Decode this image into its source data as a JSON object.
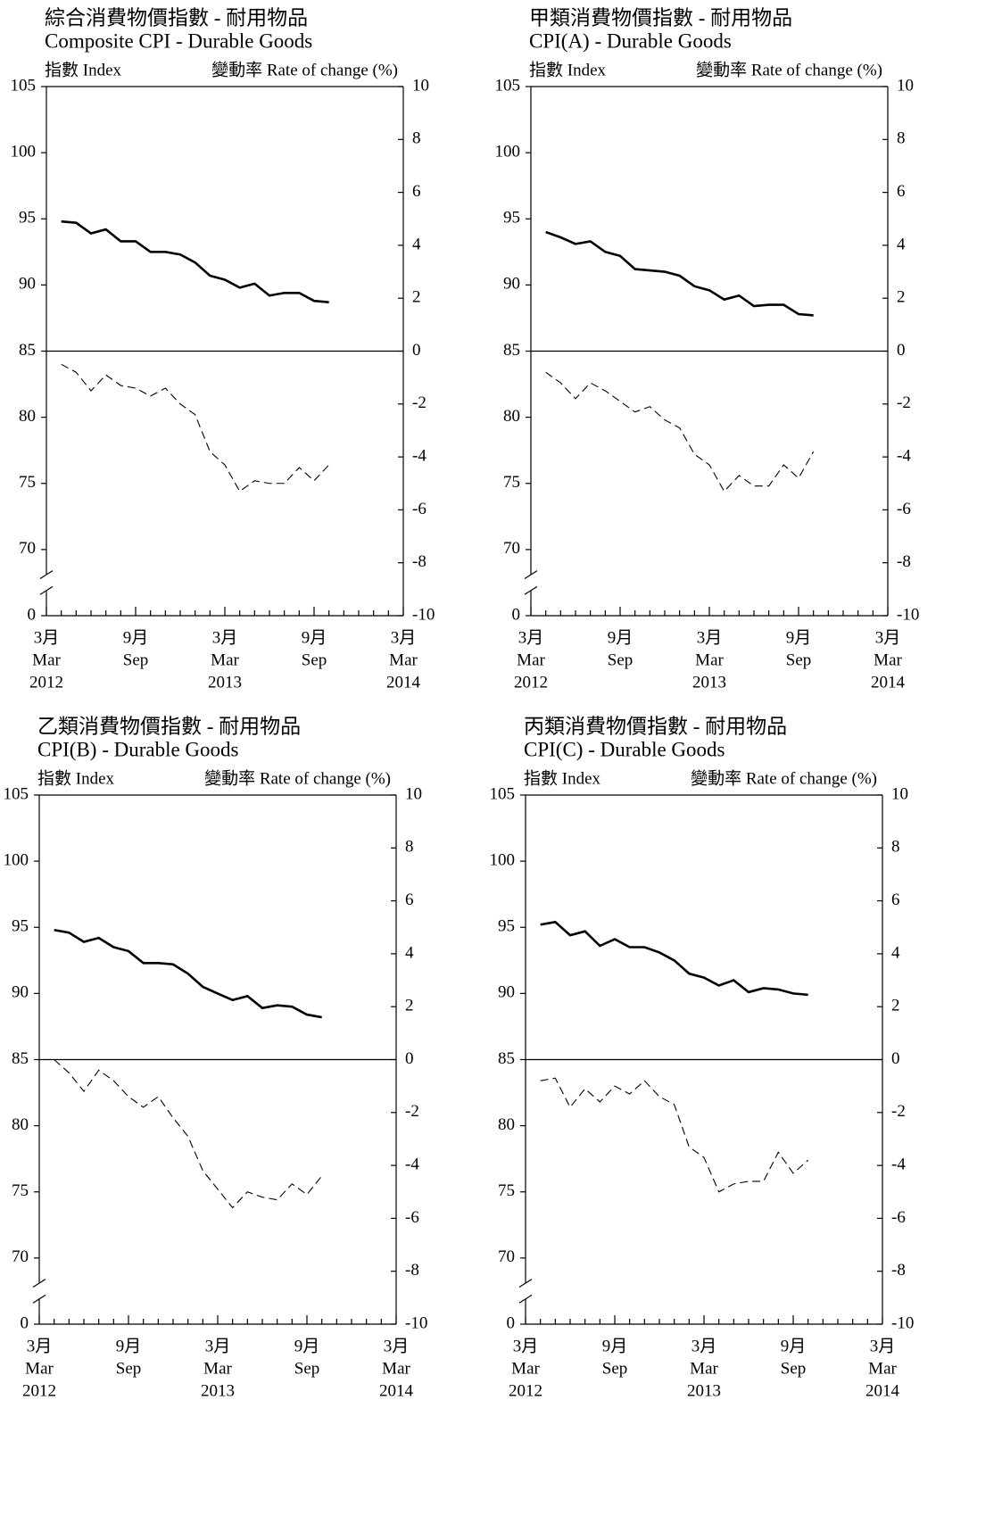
{
  "chart_data": [
    {
      "type": "line",
      "title_zh": "綜合消費物價指數 - 耐用物品",
      "title": "Composite CPI - Durable Goods",
      "ylabel": "指數 Index",
      "y2label": "變動率 Rate of change (%)",
      "categories": [
        [
          "3月",
          "Mar",
          "2012"
        ],
        null,
        null,
        null,
        null,
        null,
        [
          "9月",
          "Sep"
        ],
        null,
        null,
        null,
        null,
        null,
        [
          "3月",
          "Mar",
          "2013"
        ],
        null,
        null,
        null,
        null,
        null,
        [
          "9月",
          "Sep"
        ],
        null,
        null,
        null,
        null,
        null,
        [
          "3月",
          "Mar",
          "2014"
        ]
      ],
      "series": [
        {
          "color": "#000000",
          "dashed": false,
          "values": [
            null,
            94.8,
            94.7,
            93.9,
            94.2,
            93.3,
            93.3,
            92.5,
            92.5,
            92.3,
            91.7,
            90.7,
            90.4,
            89.8,
            90.1,
            89.2,
            89.4,
            89.4,
            88.8,
            88.7,
            null,
            null,
            null,
            null,
            null
          ]
        },
        {
          "color": "#000000",
          "dashed": true,
          "axis": "y2",
          "values": [
            null,
            -0.5,
            -0.8,
            -1.5,
            -0.9,
            -1.3,
            -1.4,
            -1.7,
            -1.4,
            -2.0,
            -2.4,
            -3.8,
            -4.3,
            -5.3,
            -4.9,
            -5.0,
            -5.0,
            -4.4,
            -4.9,
            -4.3,
            null,
            null,
            null,
            null,
            null
          ]
        }
      ],
      "ylim": [
        0,
        105
      ],
      "yticks": [
        0,
        70,
        75,
        80,
        85,
        90,
        95,
        100,
        105
      ],
      "axis_break": true,
      "y2lim": [
        -10,
        10
      ],
      "y2ticks": [
        -10,
        -8,
        -6,
        -4,
        -2,
        0,
        2,
        4,
        6,
        8,
        10
      ]
    },
    {
      "type": "line",
      "title_zh": "甲類消費物價指數 - 耐用物品",
      "title": "CPI(A) - Durable Goods",
      "ylabel": "指數 Index",
      "y2label": "變動率 Rate of change (%)",
      "categories": [
        [
          "3月",
          "Mar",
          "2012"
        ],
        null,
        null,
        null,
        null,
        null,
        [
          "9月",
          "Sep"
        ],
        null,
        null,
        null,
        null,
        null,
        [
          "3月",
          "Mar",
          "2013"
        ],
        null,
        null,
        null,
        null,
        null,
        [
          "9月",
          "Sep"
        ],
        null,
        null,
        null,
        null,
        null,
        [
          "3月",
          "Mar",
          "2014"
        ]
      ],
      "series": [
        {
          "color": "#000000",
          "dashed": false,
          "values": [
            null,
            94.0,
            93.6,
            93.1,
            93.3,
            92.5,
            92.2,
            91.2,
            91.1,
            91.0,
            90.7,
            89.9,
            89.6,
            88.9,
            89.2,
            88.4,
            88.5,
            88.5,
            87.8,
            87.7,
            null,
            null,
            null,
            null,
            null
          ]
        },
        {
          "color": "#000000",
          "dashed": true,
          "axis": "y2",
          "values": [
            null,
            -0.8,
            -1.2,
            -1.8,
            -1.2,
            -1.5,
            -1.9,
            -2.3,
            -2.1,
            -2.6,
            -2.9,
            -3.9,
            -4.3,
            -5.3,
            -4.7,
            -5.1,
            -5.1,
            -4.3,
            -4.8,
            -3.8,
            null,
            null,
            null,
            null,
            null
          ]
        }
      ],
      "ylim": [
        0,
        105
      ],
      "yticks": [
        0,
        70,
        75,
        80,
        85,
        90,
        95,
        100,
        105
      ],
      "axis_break": true,
      "y2lim": [
        -10,
        10
      ],
      "y2ticks": [
        -10,
        -8,
        -6,
        -4,
        -2,
        0,
        2,
        4,
        6,
        8,
        10
      ]
    },
    {
      "type": "line",
      "title_zh": "乙類消費物價指數 - 耐用物品",
      "title": "CPI(B) - Durable Goods",
      "ylabel": "指數 Index",
      "y2label": "變動率 Rate of change (%)",
      "categories": [
        [
          "3月",
          "Mar",
          "2012"
        ],
        null,
        null,
        null,
        null,
        null,
        [
          "9月",
          "Sep"
        ],
        null,
        null,
        null,
        null,
        null,
        [
          "3月",
          "Mar",
          "2013"
        ],
        null,
        null,
        null,
        null,
        null,
        [
          "9月",
          "Sep"
        ],
        null,
        null,
        null,
        null,
        null,
        [
          "3月",
          "Mar",
          "2014"
        ]
      ],
      "series": [
        {
          "color": "#000000",
          "dashed": false,
          "values": [
            null,
            94.8,
            94.6,
            93.9,
            94.2,
            93.5,
            93.2,
            92.3,
            92.3,
            92.2,
            91.5,
            90.5,
            90.0,
            89.5,
            89.8,
            88.9,
            89.1,
            89.0,
            88.4,
            88.2,
            null,
            null,
            null,
            null,
            null
          ]
        },
        {
          "color": "#000000",
          "dashed": true,
          "axis": "y2",
          "values": [
            null,
            0.0,
            -0.5,
            -1.2,
            -0.4,
            -0.8,
            -1.4,
            -1.8,
            -1.4,
            -2.2,
            -2.9,
            -4.2,
            -4.9,
            -5.6,
            -5.0,
            -5.2,
            -5.3,
            -4.7,
            -5.1,
            -4.4,
            null,
            null,
            null,
            null,
            null
          ]
        }
      ],
      "ylim": [
        0,
        105
      ],
      "yticks": [
        0,
        70,
        75,
        80,
        85,
        90,
        95,
        100,
        105
      ],
      "axis_break": true,
      "y2lim": [
        -10,
        10
      ],
      "y2ticks": [
        -10,
        -8,
        -6,
        -4,
        -2,
        0,
        2,
        4,
        6,
        8,
        10
      ]
    },
    {
      "type": "line",
      "title_zh": "丙類消費物價指數 - 耐用物品",
      "title": "CPI(C) - Durable Goods",
      "ylabel": "指數 Index",
      "y2label": "變動率 Rate of change (%)",
      "categories": [
        [
          "3月",
          "Mar",
          "2012"
        ],
        null,
        null,
        null,
        null,
        null,
        [
          "9月",
          "Sep"
        ],
        null,
        null,
        null,
        null,
        null,
        [
          "3月",
          "Mar",
          "2013"
        ],
        null,
        null,
        null,
        null,
        null,
        [
          "9月",
          "Sep"
        ],
        null,
        null,
        null,
        null,
        null,
        [
          "3月",
          "Mar",
          "2014"
        ]
      ],
      "series": [
        {
          "color": "#000000",
          "dashed": false,
          "values": [
            null,
            95.2,
            95.4,
            94.4,
            94.7,
            93.6,
            94.1,
            93.5,
            93.5,
            93.1,
            92.5,
            91.5,
            91.2,
            90.6,
            91.0,
            90.1,
            90.4,
            90.3,
            90.0,
            89.9,
            null,
            null,
            null,
            null,
            null
          ]
        },
        {
          "color": "#000000",
          "dashed": true,
          "axis": "y2",
          "values": [
            null,
            -0.8,
            -0.7,
            -1.8,
            -1.1,
            -1.6,
            -1.0,
            -1.3,
            -0.8,
            -1.4,
            -1.7,
            -3.3,
            -3.7,
            -5.0,
            -4.7,
            -4.6,
            -4.6,
            -3.5,
            -4.3,
            -3.8,
            null,
            null,
            null,
            null,
            null
          ]
        }
      ],
      "ylim": [
        0,
        105
      ],
      "yticks": [
        0,
        70,
        75,
        80,
        85,
        90,
        95,
        100,
        105
      ],
      "axis_break": true,
      "y2lim": [
        -10,
        10
      ],
      "y2ticks": [
        -10,
        -8,
        -6,
        -4,
        -2,
        0,
        2,
        4,
        6,
        8,
        10
      ]
    }
  ]
}
